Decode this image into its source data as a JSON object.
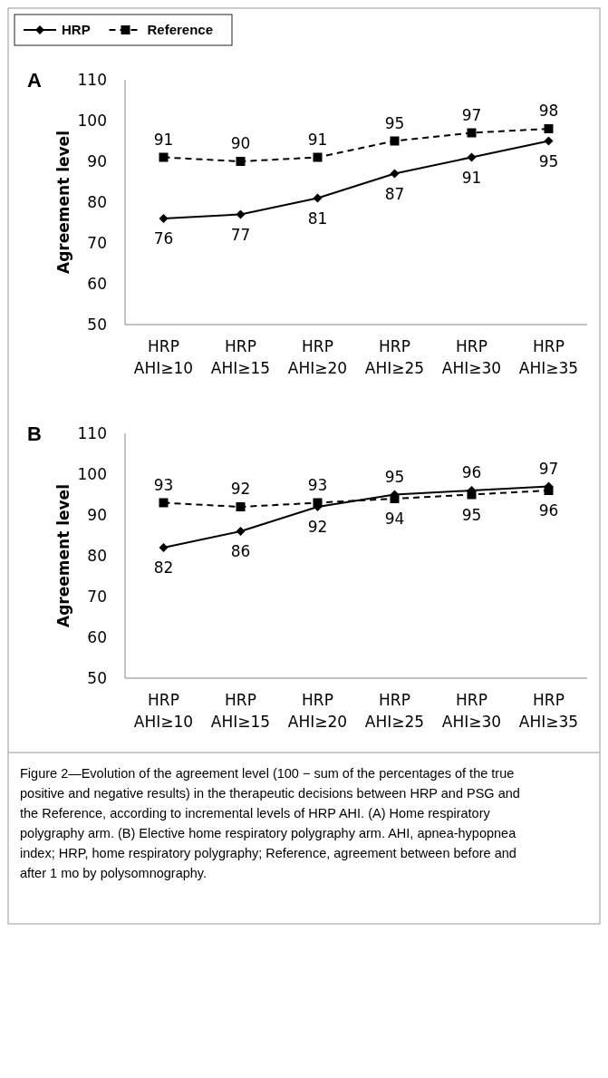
{
  "chart_data": [
    {
      "type": "line",
      "title": "A",
      "ylabel": "Agreement level",
      "categories": [
        "HRP AHI≥10",
        "HRP AHI≥15",
        "HRP AHI≥20",
        "HRP AHI≥25",
        "HRP AHI≥30",
        "HRP AHI≥35"
      ],
      "series": [
        {
          "name": "HRP",
          "color": "#000000",
          "marker": "diamond",
          "line_style": "solid",
          "values": [
            76,
            77,
            81,
            87,
            91,
            95
          ]
        },
        {
          "name": "Reference",
          "color": "#000000",
          "marker": "square",
          "line_style": "dashed",
          "values": [
            91,
            90,
            91,
            95,
            97,
            98
          ]
        }
      ],
      "ylim": [
        50,
        110
      ],
      "yticks": [
        50,
        60,
        70,
        80,
        90,
        100,
        110
      ],
      "grid": false,
      "legend": "top left",
      "data_labels": true
    },
    {
      "type": "line",
      "title": "B",
      "ylabel": "Agreement level",
      "categories": [
        "HRP AHI≥10",
        "HRP AHI≥15",
        "HRP AHI≥20",
        "HRP AHI≥25",
        "HRP AHI≥30",
        "HRP AHI≥35"
      ],
      "series": [
        {
          "color": "#000000",
          "marker": "diamond",
          "line_style": "solid",
          "values": [
            82,
            86,
            92,
            95,
            96,
            97
          ]
        },
        {
          "color": "#000000",
          "marker": "square",
          "line_style": "dashed",
          "values": [
            93,
            92,
            93,
            94,
            95,
            96
          ]
        }
      ],
      "ylim": [
        50,
        110
      ],
      "yticks": [
        50,
        60,
        70,
        80,
        90,
        100,
        110
      ],
      "grid": false,
      "data_labels": true,
      "annotations": [
        "Figure 2—Evolution of the agreement level (100 − sum of the percentages of the true positive and negative results) in the therapeutic decisions between HRP and PSG and the Reference, according to incremental levels of HRP AHI. (A) Home respiratory polygraphy arm. (B) Elective home respiratory polygraphy arm. AHI, apnea-hypopnea index; HRP, home respiratory polygraphy; Reference, agreement between before and after 1 mo by polysomnography."
      ]
    }
  ]
}
